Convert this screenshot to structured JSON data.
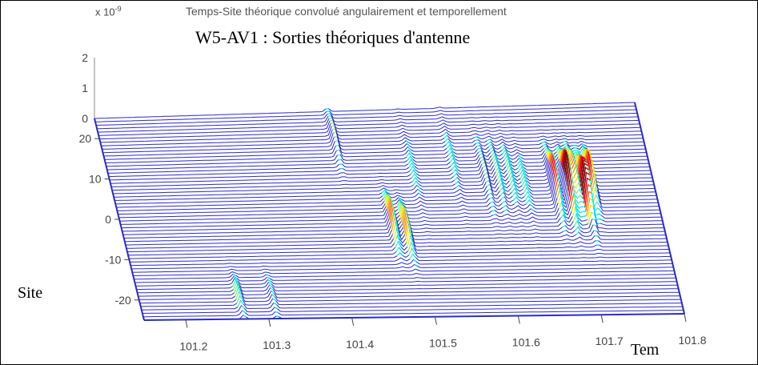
{
  "figure": {
    "matlab_title": "Temps-Site théorique convolué angulairement et temporellement",
    "main_title": "W5-AV1 : Sorties théoriques d'antenne",
    "exponent_base": "x 10",
    "exponent_power": "-9"
  },
  "chart_data": {
    "type": "area",
    "plot_kind": "3d-waterfall",
    "title": "Temps-Site théorique convolué angulairement et temporellement",
    "subtitle": "W5-AV1 : Sorties théoriques d'antenne",
    "xlabel": "Tem",
    "ylabel": "Site",
    "zlabel": "",
    "xlim": [
      101.15,
      101.8
    ],
    "ylim": [
      -25,
      25
    ],
    "zlim": [
      0,
      2
    ],
    "z_scale_note": "x 10^-9",
    "x_ticks": [
      101.2,
      101.3,
      101.4,
      101.5,
      101.6,
      101.7,
      101.8
    ],
    "x_tick_labels": [
      "101.2",
      "101.3",
      "101.4",
      "101.5",
      "101.6",
      "101.7",
      "101.8"
    ],
    "y_ticks": [
      -20,
      -10,
      0,
      10,
      20
    ],
    "y_tick_labels": [
      "-20",
      "-10",
      "0",
      "10",
      "20"
    ],
    "z_ticks": [
      0,
      1,
      2
    ],
    "z_tick_labels": [
      "0",
      "1",
      "2"
    ],
    "grid": false,
    "colormap": "jet",
    "line_color": "#2b2bc8",
    "peaks": [
      {
        "t": 101.27,
        "site": -20,
        "amp": 0.35,
        "site_width": 5
      },
      {
        "t": 101.31,
        "site": -20,
        "amp": 0.25,
        "site_width": 5
      },
      {
        "t": 101.43,
        "site": 18,
        "amp": 0.45,
        "site_width": 6
      },
      {
        "t": 101.475,
        "site": -3,
        "amp": 0.75,
        "site_width": 6
      },
      {
        "t": 101.49,
        "site": -5,
        "amp": 0.7,
        "site_width": 6
      },
      {
        "t": 101.515,
        "site": 10,
        "amp": 0.2,
        "site_width": 10
      },
      {
        "t": 101.565,
        "site": 12,
        "amp": 0.2,
        "site_width": 10
      },
      {
        "t": 101.6,
        "site": 8,
        "amp": 0.35,
        "site_width": 8
      },
      {
        "t": 101.615,
        "site": 8,
        "amp": 0.35,
        "site_width": 8
      },
      {
        "t": 101.63,
        "site": 8,
        "amp": 0.3,
        "site_width": 8
      },
      {
        "t": 101.645,
        "site": 6,
        "amp": 0.25,
        "site_width": 8
      },
      {
        "t": 101.68,
        "site": 5,
        "amp": 1.0,
        "site_width": 7
      },
      {
        "t": 101.695,
        "site": 4,
        "amp": 1.3,
        "site_width": 7
      },
      {
        "t": 101.705,
        "site": 7,
        "amp": 0.8,
        "site_width": 6
      },
      {
        "t": 101.715,
        "site": 3,
        "amp": 1.4,
        "site_width": 7
      },
      {
        "t": 101.725,
        "site": 6,
        "amp": 1.0,
        "site_width": 6
      }
    ]
  }
}
